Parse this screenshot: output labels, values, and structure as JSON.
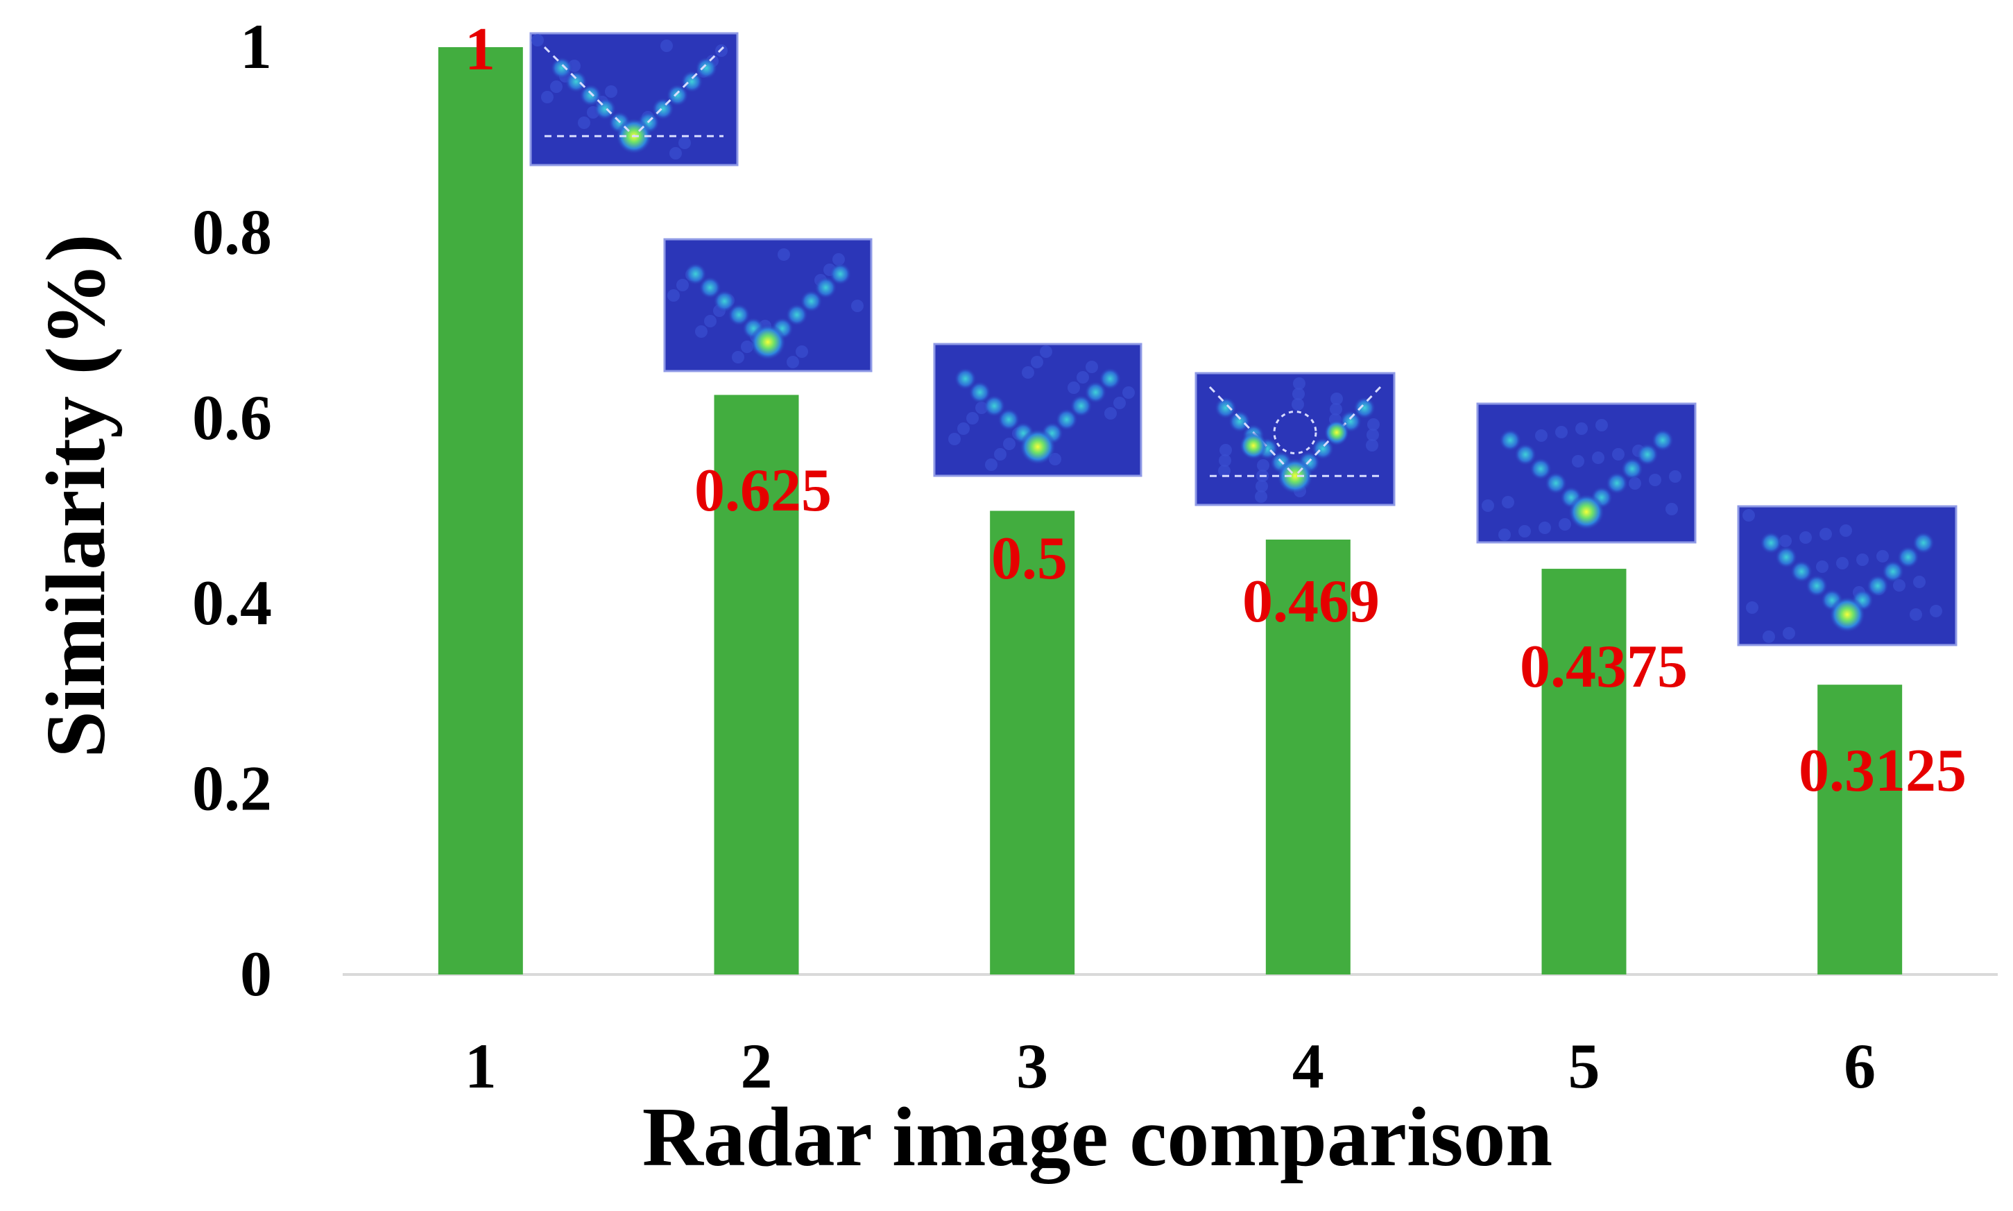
{
  "chart_data": {
    "type": "bar",
    "categories": [
      "1",
      "2",
      "3",
      "4",
      "5",
      "6"
    ],
    "values": [
      1,
      0.625,
      0.5,
      0.469,
      0.4375,
      0.3125
    ],
    "data_labels": [
      "1",
      "0.625",
      "0.5",
      "0.469",
      "0.4375",
      "0.3125"
    ],
    "xlabel": "Radar image comparison",
    "ylabel": "Similarity (%)",
    "ylim": [
      0,
      1
    ],
    "yticks": [
      0,
      0.2,
      0.4,
      0.6,
      0.8,
      1
    ],
    "ytick_labels": [
      "0",
      "0.2",
      "0.4",
      "0.6",
      "0.8",
      "1"
    ],
    "grid": false,
    "legend": "none",
    "colors": {
      "bar": "#42ad3f",
      "data_label": "#e60000",
      "inset_background": "#2b36b8",
      "inset_hotspot": "#e8f04a"
    }
  }
}
